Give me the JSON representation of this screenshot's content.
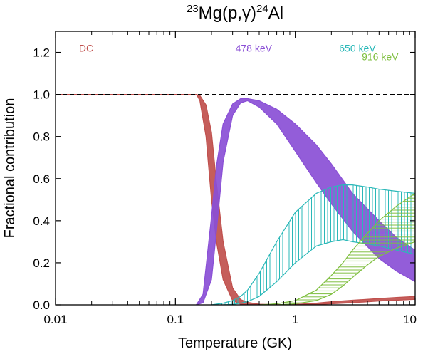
{
  "chart_data": {
    "type": "area",
    "title": {
      "sup1": "23",
      "part1": "Mg(p,γ)",
      "sup2": "24",
      "part2": "Al"
    },
    "xlabel": "Temperature (GK)",
    "ylabel": "Fractional contribution",
    "xscale": "log",
    "xlim": [
      0.01,
      10
    ],
    "ylim": [
      0,
      1.3
    ],
    "xticks": [
      {
        "value": 0.01,
        "label": "0.01"
      },
      {
        "value": 0.1,
        "label": "0.1"
      },
      {
        "value": 1,
        "label": "1"
      },
      {
        "value": 10,
        "label": "10"
      }
    ],
    "yticks": [
      {
        "value": 0,
        "label": "0.0"
      },
      {
        "value": 0.2,
        "label": "0.2"
      },
      {
        "value": 0.4,
        "label": "0.4"
      },
      {
        "value": 0.6,
        "label": "0.6"
      },
      {
        "value": 0.8,
        "label": "0.8"
      },
      {
        "value": 1.0,
        "label": "1.0"
      },
      {
        "value": 1.2,
        "label": "1.2"
      }
    ],
    "reference_line": {
      "y": 1.0,
      "style": "dashed"
    },
    "grid": false,
    "series": [
      {
        "name": "DC",
        "color": "#c0504d",
        "fill": "solid",
        "label_at": {
          "x": 0.018,
          "y": 1.22
        },
        "x": [
          0.01,
          0.1,
          0.15,
          0.16,
          0.18,
          0.2,
          0.22,
          0.25,
          0.3,
          0.35,
          0.4,
          0.5,
          0.7,
          1.0,
          1.5,
          2,
          3,
          5,
          7,
          10
        ],
        "lower": [
          1.0,
          1.0,
          1.0,
          0.97,
          0.8,
          0.5,
          0.3,
          0.12,
          0.02,
          0.003,
          0.0,
          0.0,
          0.0,
          0.0,
          0.002,
          0.005,
          0.01,
          0.018,
          0.022,
          0.026
        ],
        "upper": [
          1.0,
          1.0,
          1.0,
          0.995,
          0.95,
          0.82,
          0.58,
          0.3,
          0.08,
          0.025,
          0.012,
          0.003,
          0.001,
          0.002,
          0.008,
          0.015,
          0.022,
          0.03,
          0.035,
          0.04
        ]
      },
      {
        "name": "478 keV",
        "color": "#8a4fd6",
        "fill": "solid",
        "label_at": {
          "x": 0.45,
          "y": 1.22
        },
        "x": [
          0.15,
          0.17,
          0.2,
          0.22,
          0.25,
          0.3,
          0.35,
          0.4,
          0.5,
          0.7,
          1.0,
          1.5,
          2,
          3,
          5,
          7,
          10
        ],
        "lower": [
          0.0,
          0.01,
          0.12,
          0.35,
          0.68,
          0.9,
          0.96,
          0.97,
          0.94,
          0.86,
          0.73,
          0.58,
          0.48,
          0.35,
          0.22,
          0.16,
          0.11
        ],
        "upper": [
          0.002,
          0.05,
          0.42,
          0.66,
          0.86,
          0.955,
          0.98,
          0.98,
          0.97,
          0.93,
          0.86,
          0.76,
          0.67,
          0.53,
          0.4,
          0.32,
          0.26
        ]
      },
      {
        "name": "650 keV",
        "color": "#2ab8b8",
        "fill": "hatch",
        "label_at": {
          "x": 3.3,
          "y": 1.22
        },
        "x": [
          0.2,
          0.25,
          0.3,
          0.35,
          0.4,
          0.5,
          0.7,
          1.0,
          1.5,
          2,
          2.5,
          3,
          4,
          5,
          7,
          10
        ],
        "lower": [
          0.0,
          0.0,
          0.002,
          0.008,
          0.015,
          0.04,
          0.11,
          0.2,
          0.28,
          0.3,
          0.31,
          0.3,
          0.29,
          0.28,
          0.26,
          0.24
        ],
        "upper": [
          0.0,
          0.008,
          0.02,
          0.04,
          0.07,
          0.15,
          0.3,
          0.44,
          0.53,
          0.56,
          0.57,
          0.57,
          0.56,
          0.55,
          0.54,
          0.53
        ]
      },
      {
        "name": "916 keV",
        "color": "#7fbf3f",
        "fill": "hatch",
        "label_at": {
          "x": 5.1,
          "y": 1.18
        },
        "x": [
          0.5,
          0.7,
          1.0,
          1.5,
          2,
          2.5,
          3,
          4,
          5,
          7,
          10
        ],
        "lower": [
          0.0,
          0.0,
          0.005,
          0.02,
          0.05,
          0.09,
          0.13,
          0.19,
          0.23,
          0.27,
          0.3
        ],
        "upper": [
          0.0,
          0.005,
          0.02,
          0.07,
          0.14,
          0.2,
          0.26,
          0.34,
          0.4,
          0.47,
          0.53
        ]
      }
    ]
  }
}
